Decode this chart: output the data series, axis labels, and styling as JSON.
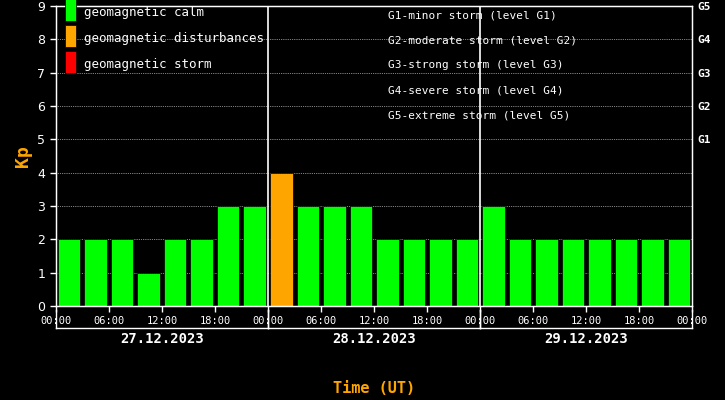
{
  "background_color": "#000000",
  "plot_bg_color": "#000000",
  "text_color": "#ffffff",
  "bar_values": [
    2,
    2,
    2,
    1,
    2,
    2,
    3,
    3,
    4,
    3,
    3,
    3,
    2,
    2,
    2,
    2,
    3,
    2,
    2,
    2,
    2,
    2,
    2,
    2
  ],
  "bar_colors": [
    "#00ff00",
    "#00ff00",
    "#00ff00",
    "#00ff00",
    "#00ff00",
    "#00ff00",
    "#00ff00",
    "#00ff00",
    "#ffa500",
    "#00ff00",
    "#00ff00",
    "#00ff00",
    "#00ff00",
    "#00ff00",
    "#00ff00",
    "#00ff00",
    "#00ff00",
    "#00ff00",
    "#00ff00",
    "#00ff00",
    "#00ff00",
    "#00ff00",
    "#00ff00",
    "#00ff00"
  ],
  "bar_edge_color": "#000000",
  "ylim": [
    0,
    9
  ],
  "yticks": [
    0,
    1,
    2,
    3,
    4,
    5,
    6,
    7,
    8,
    9
  ],
  "ylabel": "Kp",
  "ylabel_color": "#ffa500",
  "xlabel": "Time (UT)",
  "xlabel_color": "#ffa500",
  "day_labels": [
    "27.12.2023",
    "28.12.2023",
    "29.12.2023"
  ],
  "xtick_labels": [
    "00:00",
    "06:00",
    "12:00",
    "18:00",
    "00:00",
    "06:00",
    "12:00",
    "18:00",
    "00:00",
    "06:00",
    "12:00",
    "18:00",
    "00:00"
  ],
  "right_labels": [
    "G5",
    "G4",
    "G3",
    "G2",
    "G1"
  ],
  "right_label_yticks": [
    9,
    8,
    7,
    6,
    5
  ],
  "right_label_color": "#ffffff",
  "vline_x": [
    8,
    16
  ],
  "legend_items": [
    {
      "label": "geomagnetic calm",
      "color": "#00ff00"
    },
    {
      "label": "geomagnetic disturbances",
      "color": "#ffa500"
    },
    {
      "label": "geomagnetic storm",
      "color": "#ff0000"
    }
  ],
  "legend_text_color": "#ffffff",
  "right_text": [
    "G1-minor storm (level G1)",
    "G2-moderate storm (level G2)",
    "G3-strong storm (level G3)",
    "G4-severe storm (level G4)",
    "G5-extreme storm (level G5)"
  ],
  "right_text_color": "#ffffff",
  "dot_grid_color": "#ffffff"
}
